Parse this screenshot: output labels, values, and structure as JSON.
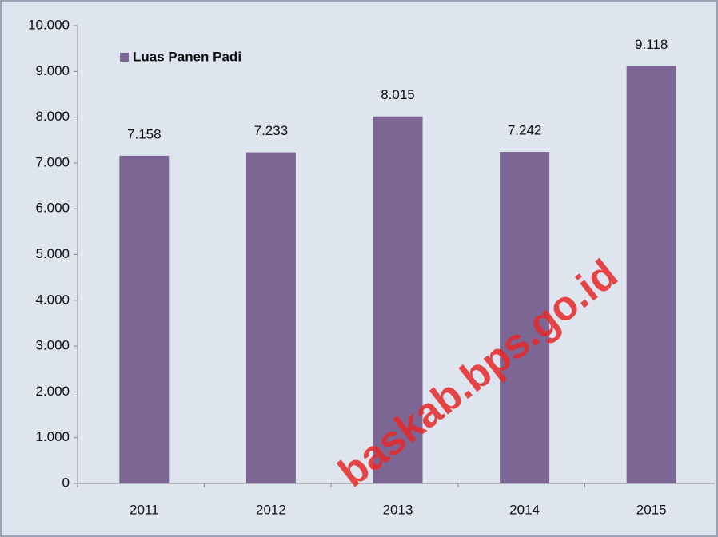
{
  "chart_data": {
    "type": "bar",
    "categories": [
      "2011",
      "2012",
      "2013",
      "2014",
      "2015"
    ],
    "series": [
      {
        "name": "Luas Panen Padi",
        "color": "#7b6694",
        "values": [
          7158,
          7233,
          8015,
          7242,
          9118
        ],
        "value_labels": [
          "7.158",
          "7.233",
          "8.015",
          "7.242",
          "9.118"
        ]
      }
    ],
    "ylim": [
      0,
      10000
    ],
    "yticks": [
      0,
      {
        "value": 1000,
        "label": "1.000"
      },
      {
        "value": 2000,
        "label": "2.000"
      },
      {
        "value": 3000,
        "label": "3.000"
      },
      {
        "value": 4000,
        "label": "4.000"
      },
      {
        "value": 5000,
        "label": "5.000"
      },
      {
        "value": 6000,
        "label": "6.000"
      },
      {
        "value": 7000,
        "label": "7.000"
      },
      {
        "value": 8000,
        "label": "8.000"
      },
      {
        "value": 9000,
        "label": "9.000"
      },
      {
        "value": 10000,
        "label": "10.000"
      }
    ],
    "legend": "top-left",
    "watermark": "baskab.bps.go.id"
  }
}
